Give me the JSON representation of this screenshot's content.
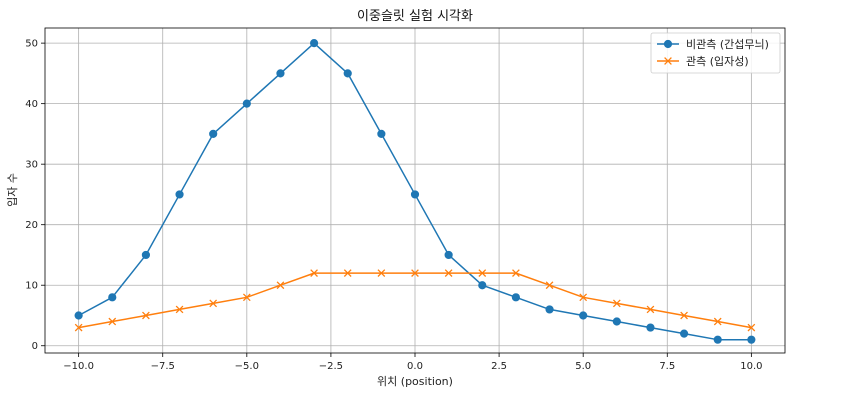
{
  "chart_data": {
    "type": "line",
    "title": "이중슬릿 실험 시각화",
    "xlabel": "위치 (position)",
    "ylabel": "입자 수",
    "xlim": [
      -11,
      11
    ],
    "ylim": [
      -1.2,
      52.5
    ],
    "xticks": [
      -10,
      -7.5,
      -5,
      -2.5,
      0,
      2.5,
      5,
      7.5,
      10
    ],
    "xtick_labels": [
      "−10.0",
      "−7.5",
      "−5.0",
      "−2.5",
      "0.0",
      "2.5",
      "5.0",
      "7.5",
      "10.0"
    ],
    "yticks": [
      0,
      10,
      20,
      30,
      40,
      50
    ],
    "ytick_labels": [
      "0",
      "10",
      "20",
      "30",
      "40",
      "50"
    ],
    "grid": true,
    "legend_position": "top-right",
    "x": [
      -10,
      -9,
      -8,
      -7,
      -6,
      -5,
      -4,
      -3,
      -2,
      -1,
      0,
      1,
      2,
      3,
      4,
      5,
      6,
      7,
      8,
      9,
      10
    ],
    "series": [
      {
        "name": "비관측 (간섭무늬)",
        "color": "#1f77b4",
        "marker": "circle",
        "values": [
          5,
          8,
          15,
          25,
          35,
          40,
          45,
          50,
          45,
          35,
          25,
          15,
          10,
          8,
          6,
          5,
          4,
          3,
          2,
          1,
          1
        ]
      },
      {
        "name": "관측 (입자성)",
        "color": "#ff7f0e",
        "marker": "x",
        "values": [
          3,
          4,
          5,
          6,
          7,
          8,
          10,
          12,
          12,
          12,
          12,
          12,
          12,
          12,
          10,
          8,
          7,
          6,
          5,
          4,
          3
        ]
      }
    ]
  }
}
